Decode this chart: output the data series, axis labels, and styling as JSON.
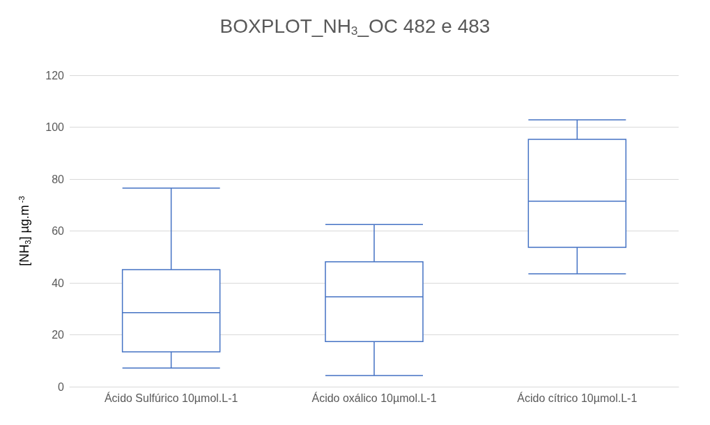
{
  "chart_data": {
    "type": "box",
    "title": "BOXPLOT_NH$_{3}$_OC 482 e 483",
    "ylabel": "[NH$_{3}$] µg.m$^{-3}$",
    "categories": [
      "Ácido Sulfúrico 10µmol.L-1",
      "Ácido oxálico 10µmol.L-1",
      "Ácido cítrico 10µmol.L-1"
    ],
    "series": [
      {
        "color": "#4472c4",
        "boxes": [
          {
            "low": 7.2,
            "q1": 13.4,
            "median": 28.5,
            "q3": 45.1,
            "high": 76.5
          },
          {
            "low": 4.3,
            "q1": 17.4,
            "median": 34.6,
            "q3": 48.1,
            "high": 62.5
          },
          {
            "low": 43.5,
            "q1": 53.7,
            "median": 71.5,
            "q3": 95.3,
            "high": 102.8
          }
        ]
      }
    ],
    "ylim": [
      0,
      120
    ],
    "yticks": [
      0,
      20,
      40,
      60,
      80,
      100,
      120
    ],
    "grid": "y"
  }
}
